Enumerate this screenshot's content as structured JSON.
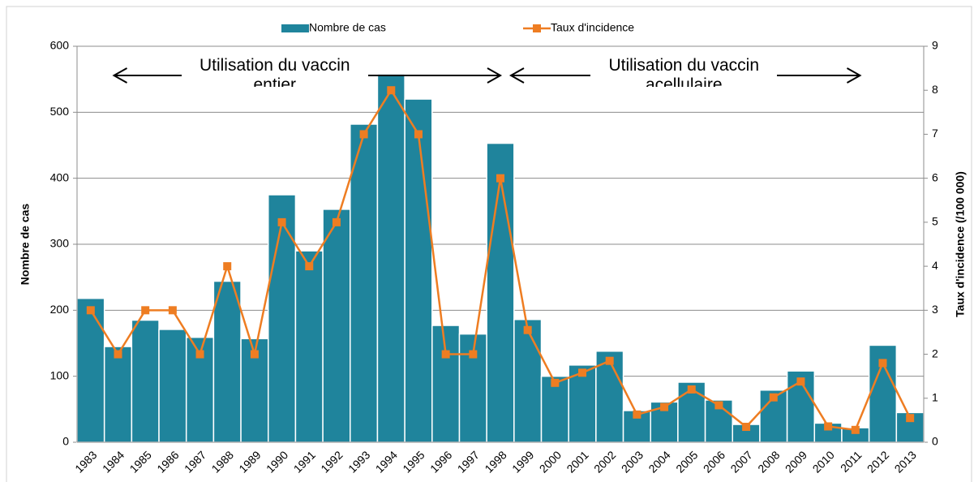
{
  "chart_data": {
    "type": "bar-line",
    "categories": [
      "1983",
      "1984",
      "1985",
      "1986",
      "1987",
      "1988",
      "1989",
      "1990",
      "1991",
      "1992",
      "1993",
      "1994",
      "1995",
      "1996",
      "1997",
      "1998",
      "1999",
      "2000",
      "2001",
      "2002",
      "2003",
      "2004",
      "2005",
      "2006",
      "2007",
      "2008",
      "2009",
      "2010",
      "2011",
      "2012",
      "2013"
    ],
    "series": [
      {
        "name": "Nombre de cas",
        "color": "#1f849c",
        "type": "bar",
        "values": [
          218,
          145,
          185,
          171,
          159,
          244,
          157,
          375,
          290,
          353,
          482,
          558,
          520,
          177,
          164,
          453,
          186,
          100,
          117,
          138,
          48,
          61,
          91,
          64,
          27,
          79,
          108,
          29,
          22,
          147,
          45
        ]
      },
      {
        "name": "Taux d'incidence",
        "color": "#ee7d22",
        "type": "line",
        "axis": "y2",
        "values": [
          3,
          2,
          3,
          3,
          2,
          4,
          2,
          5,
          4,
          5,
          7,
          8,
          7,
          2,
          2,
          6,
          2.55,
          1.35,
          1.58,
          1.85,
          0.63,
          0.8,
          1.2,
          0.84,
          0.35,
          1.02,
          1.38,
          0.36,
          0.28,
          1.8,
          0.55
        ]
      }
    ],
    "ylabel": "Nombre de cas",
    "y2label": "Taux d'incidence (/100 000)",
    "ylim": [
      0,
      600
    ],
    "yticks": [
      0,
      100,
      200,
      300,
      400,
      500,
      600
    ],
    "y2lim": [
      0,
      9
    ],
    "y2ticks": [
      0,
      1,
      2,
      3,
      4,
      5,
      6,
      7,
      8,
      9
    ],
    "grid": true,
    "legend": "top",
    "annotations": [
      {
        "text": "Utilisation du vaccin entier",
        "from": "1984",
        "to": "1998"
      },
      {
        "text": "Utilisation du vaccin acellulaire",
        "from": "1998",
        "to": "2012"
      }
    ]
  }
}
